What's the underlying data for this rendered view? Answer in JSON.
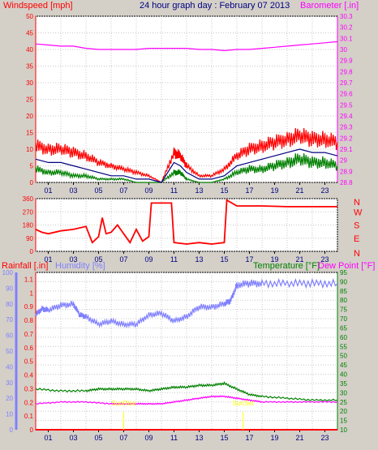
{
  "title": "24 hour graph day : February 07 2013",
  "colors": {
    "background": "#d4d0c8",
    "plot_bg": "#ffffff",
    "grid": "#c8c8c8",
    "axis": "#000000",
    "wind_speed": "#ff0000",
    "wind_avg": "#000080",
    "wind_low": "#008000",
    "barometer": "#ff00ff",
    "direction": "#ff0000",
    "rainfall": "#ff0000",
    "humidity": "#8080ff",
    "temperature": "#008000",
    "dewpoint": "#ff00ff",
    "sun_marker": "#ffff00"
  },
  "chart_data": [
    {
      "id": "wind-baro",
      "type": "line",
      "labels": {
        "left": "Windspeed [mph]",
        "right": "Barometer [.in]"
      },
      "x_ticks": [
        "01",
        "03",
        "05",
        "07",
        "09",
        "11",
        "13",
        "15",
        "17",
        "19",
        "21",
        "23"
      ],
      "xlim": [
        0,
        24
      ],
      "y_left": {
        "min": 0,
        "max": 50,
        "ticks": [
          0,
          5,
          10,
          15,
          20,
          25,
          30,
          35,
          40,
          45,
          50
        ]
      },
      "y_right": {
        "min": 28.8,
        "max": 30.3,
        "ticks": [
          "28.8",
          "28.9",
          "29",
          "29.1",
          "29.2",
          "29.3",
          "29.4",
          "29.5",
          "29.6",
          "29.7",
          "29.8",
          "29.9",
          "30",
          "30.1",
          "30.2",
          "30.3"
        ]
      },
      "series": {
        "barometer": {
          "x": [
            0,
            1,
            2,
            3,
            4,
            5,
            6,
            7,
            8,
            9,
            10,
            11,
            12,
            13,
            14,
            15,
            16,
            17,
            18,
            19,
            20,
            21,
            22,
            23,
            24
          ],
          "y": [
            30.05,
            30.04,
            30.03,
            30.03,
            30.01,
            30.0,
            30.0,
            30.0,
            30.0,
            30.01,
            30.01,
            30.01,
            30.01,
            30.0,
            30.0,
            29.99,
            30.0,
            30.0,
            30.01,
            30.02,
            30.03,
            30.04,
            30.05,
            30.06,
            30.07
          ]
        },
        "wind_gust": {
          "x": [
            0,
            1,
            2,
            3,
            4,
            5,
            6,
            7,
            8,
            9,
            10,
            11,
            11.5,
            12,
            13,
            14,
            15,
            16,
            17,
            18,
            19,
            20,
            21,
            22,
            23,
            24
          ],
          "y": [
            11,
            10,
            10,
            9,
            8,
            6,
            5,
            4,
            3,
            2,
            0,
            9,
            8,
            5,
            2,
            2,
            4,
            8,
            10,
            11,
            12,
            13,
            14,
            13,
            13,
            12
          ]
        },
        "wind_avg": {
          "x": [
            0,
            1,
            2,
            3,
            4,
            5,
            6,
            7,
            8,
            9,
            10,
            11,
            11.5,
            12,
            13,
            14,
            15,
            16,
            17,
            18,
            19,
            20,
            21,
            22,
            23,
            24
          ],
          "y": [
            7,
            6,
            6,
            5,
            4,
            3,
            2,
            2,
            1,
            1,
            0,
            6,
            5,
            3,
            1,
            1,
            2,
            5,
            6,
            7,
            8,
            9,
            10,
            9,
            9,
            8
          ]
        },
        "wind_low": {
          "x": [
            0,
            1,
            2,
            3,
            4,
            5,
            6,
            7,
            8,
            9,
            10,
            11,
            11.5,
            12,
            13,
            14,
            15,
            16,
            17,
            18,
            19,
            20,
            21,
            22,
            23,
            24
          ],
          "y": [
            4,
            3,
            3,
            2,
            2,
            1,
            1,
            1,
            0,
            0,
            0,
            3,
            3,
            1,
            0,
            0,
            1,
            3,
            4,
            4,
            5,
            6,
            7,
            6,
            6,
            5
          ]
        }
      }
    },
    {
      "id": "direction",
      "type": "line",
      "x_ticks": [
        "01",
        "03",
        "05",
        "07",
        "09",
        "11",
        "13",
        "15",
        "17",
        "19",
        "21",
        "23"
      ],
      "xlim": [
        0,
        24
      ],
      "y_left": {
        "min": 0,
        "max": 360,
        "ticks": [
          0,
          90,
          180,
          270,
          360
        ]
      },
      "compass": [
        "N",
        "W",
        "S",
        "E",
        "N"
      ],
      "series": {
        "direction": {
          "x": [
            0,
            0.5,
            1,
            2,
            3,
            4,
            4.5,
            5,
            5.3,
            5.6,
            6,
            6.5,
            7,
            7.5,
            8,
            8.5,
            9,
            9.2,
            10.8,
            11,
            12,
            13,
            14,
            15,
            15.2,
            16,
            18,
            20,
            22,
            24
          ],
          "y": [
            150,
            130,
            120,
            140,
            150,
            170,
            60,
            100,
            230,
            120,
            130,
            180,
            120,
            60,
            150,
            70,
            100,
            330,
            330,
            60,
            50,
            60,
            50,
            60,
            350,
            310,
            310,
            305,
            305,
            305
          ]
        }
      }
    },
    {
      "id": "climate",
      "type": "line",
      "labels": {
        "rainfall": "Rainfall [.in]",
        "humidity": "Humidity [%]",
        "temperature": "Temperature [°F]",
        "dewpoint": "Dew Point [°F]"
      },
      "x_ticks": [
        "01",
        "03",
        "05",
        "07",
        "09",
        "11",
        "13",
        "15",
        "17",
        "19",
        "21",
        "23"
      ],
      "xlim": [
        0,
        24
      ],
      "y_rain": {
        "min": 0,
        "max": 1.15,
        "ticks": [
          "0",
          "0.1",
          "0.2",
          "0.3",
          "0.4",
          "0.5",
          "0.6",
          "0.7",
          "0.8",
          "0.9",
          "1",
          "1.1"
        ]
      },
      "y_hum": {
        "min": 0,
        "max": 100,
        "ticks": [
          0,
          10,
          20,
          30,
          40,
          50,
          60,
          70,
          80,
          90,
          100
        ]
      },
      "y_temp": {
        "min": 10,
        "max": 95,
        "ticks": [
          10,
          15,
          20,
          25,
          30,
          35,
          40,
          45,
          50,
          55,
          60,
          65,
          70,
          75,
          80,
          85,
          90,
          95
        ]
      },
      "sun_markers": [
        {
          "label": "SunRise",
          "x": 7.0
        },
        {
          "label": "SunSet",
          "x": 16.5
        }
      ],
      "series": {
        "humidity": {
          "x": [
            0,
            0.5,
            1,
            2,
            3,
            3.5,
            4,
            5,
            6,
            7,
            8,
            9,
            10,
            11,
            12,
            13,
            14,
            15,
            15.5,
            16,
            17,
            18,
            20,
            22,
            24
          ],
          "y": [
            73,
            77,
            76,
            79,
            80,
            73,
            72,
            67,
            69,
            67,
            67,
            73,
            74,
            69,
            72,
            78,
            78,
            80,
            82,
            92,
            93,
            93,
            93,
            93,
            93
          ]
        },
        "temperature": {
          "x": [
            0,
            2,
            4,
            5,
            6,
            7,
            8,
            9,
            10,
            11,
            12,
            13,
            14,
            15,
            16,
            17,
            18,
            20,
            22,
            24
          ],
          "y": [
            32,
            31,
            31,
            32,
            32,
            32,
            32,
            31,
            32,
            33,
            33,
            34,
            34,
            35,
            32,
            29,
            28,
            27,
            26,
            26
          ]
        },
        "dewpoint": {
          "x": [
            0,
            2,
            4,
            6,
            7,
            8,
            9,
            10,
            11,
            12,
            13,
            14,
            15,
            16,
            17,
            18,
            20,
            22,
            24
          ],
          "y": [
            24,
            25,
            25,
            24,
            24,
            24,
            24,
            24,
            25,
            26,
            27,
            28,
            28,
            27,
            26,
            25,
            25,
            25,
            25
          ]
        },
        "rainfall": {
          "x": [
            0,
            24
          ],
          "y": [
            0,
            0
          ]
        }
      }
    }
  ]
}
